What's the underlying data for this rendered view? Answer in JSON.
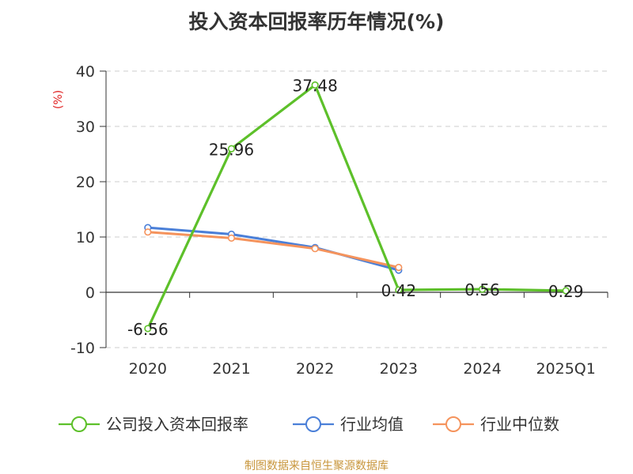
{
  "chart_data": {
    "type": "line",
    "title": "投入资本回报率历年情况(%)",
    "unit_label": "(%)",
    "categories": [
      "2020",
      "2021",
      "2022",
      "2023",
      "2024",
      "2025Q1"
    ],
    "ylim": [
      -10,
      40
    ],
    "yticks": [
      "-10",
      "0",
      "10",
      "20",
      "30",
      "40"
    ],
    "grid": true,
    "legend_position": "bottom",
    "series": [
      {
        "name": "公司投入资本回报率",
        "color": "#5dc02a",
        "values": [
          -6.56,
          25.96,
          37.48,
          0.42,
          0.56,
          0.29
        ],
        "labels": [
          "-6.56",
          "25.96",
          "37.48",
          "0.42",
          "0.56",
          "0.29"
        ]
      },
      {
        "name": "行业均值",
        "color": "#4a7fd8",
        "values": [
          11.7,
          10.5,
          8.1,
          4.0,
          null,
          null
        ]
      },
      {
        "name": "行业中位数",
        "color": "#f5935c",
        "values": [
          10.9,
          9.8,
          7.9,
          4.5,
          null,
          null
        ]
      }
    ]
  },
  "source_text": "制图数据来自恒生聚源数据库"
}
